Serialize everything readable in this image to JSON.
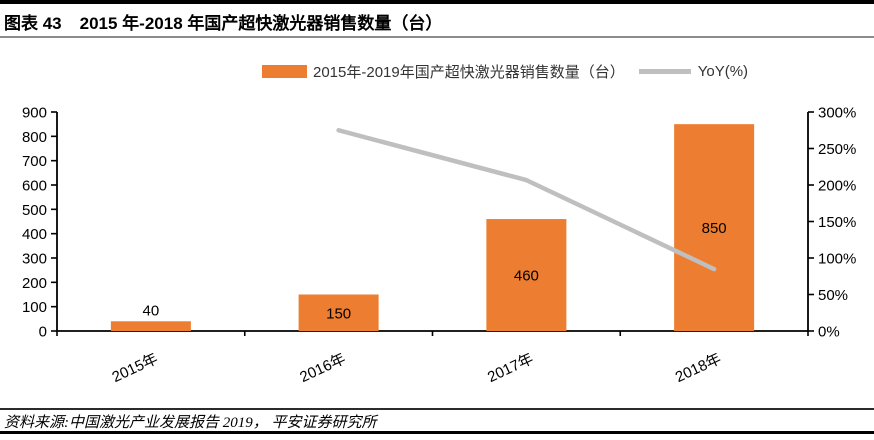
{
  "header": {
    "figure_label": "图表 43",
    "title": "2015 年-2018 年国产超快激光器销售数量（台）"
  },
  "legend": {
    "bar_label": "2015年-2019年国产超快激光器销售数量（台）",
    "line_label": "YoY(%)"
  },
  "footer": {
    "source": "资料来源:中国激光产业发展报告 2019， 平安证券研究所"
  },
  "colors": {
    "bar": "#ED7D31",
    "line": "#BFBFBF",
    "axis": "#000000",
    "title_rule": "#8C8C8C"
  },
  "chart_data": {
    "type": "bar",
    "title": "2015 年-2018 年国产超快激光器销售数量（台）",
    "categories": [
      "2015年",
      "2016年",
      "2017年",
      "2018年"
    ],
    "series": [
      {
        "name": "2015年-2019年国产超快激光器销售数量（台）",
        "kind": "bar",
        "axis": "left",
        "color": "#ED7D31",
        "values": [
          40,
          150,
          460,
          850
        ]
      },
      {
        "name": "YoY(%)",
        "kind": "line",
        "axis": "right",
        "color": "#BFBFBF",
        "values": [
          null,
          275,
          206.7,
          84.8
        ]
      }
    ],
    "bar_labels": [
      "40",
      "150",
      "460",
      "850"
    ],
    "left_axis": {
      "min": 0,
      "max": 900,
      "step": 100,
      "tick_labels": [
        "0",
        "100",
        "200",
        "300",
        "400",
        "500",
        "600",
        "700",
        "800",
        "900"
      ]
    },
    "right_axis": {
      "min": 0,
      "max": 300,
      "step": 50,
      "format": "percent",
      "tick_labels": [
        "0%",
        "50%",
        "100%",
        "150%",
        "200%",
        "250%",
        "300%"
      ]
    },
    "grid": false,
    "legend_position": "top"
  }
}
